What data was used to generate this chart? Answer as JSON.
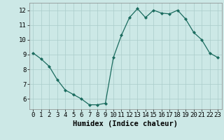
{
  "x": [
    0,
    1,
    2,
    3,
    4,
    5,
    6,
    7,
    8,
    9,
    10,
    11,
    12,
    13,
    14,
    15,
    16,
    17,
    18,
    19,
    20,
    21,
    22,
    23
  ],
  "y": [
    9.1,
    8.7,
    8.2,
    7.3,
    6.6,
    6.3,
    6.0,
    5.6,
    5.6,
    5.7,
    8.8,
    10.3,
    11.5,
    12.1,
    11.5,
    12.0,
    11.8,
    11.75,
    12.0,
    11.4,
    10.5,
    10.0,
    9.1,
    8.8
  ],
  "line_color": "#1a6b5e",
  "marker": "D",
  "marker_size": 2.0,
  "bg_color": "#cce8e6",
  "grid_color": "#aaccca",
  "xlabel": "Humidex (Indice chaleur)",
  "xlabel_fontsize": 7.5,
  "tick_fontsize": 6.5,
  "xlim": [
    -0.5,
    23.5
  ],
  "ylim": [
    5.3,
    12.5
  ],
  "yticks": [
    6,
    7,
    8,
    9,
    10,
    11,
    12
  ],
  "xticks": [
    0,
    1,
    2,
    3,
    4,
    5,
    6,
    7,
    8,
    9,
    10,
    11,
    12,
    13,
    14,
    15,
    16,
    17,
    18,
    19,
    20,
    21,
    22,
    23
  ]
}
